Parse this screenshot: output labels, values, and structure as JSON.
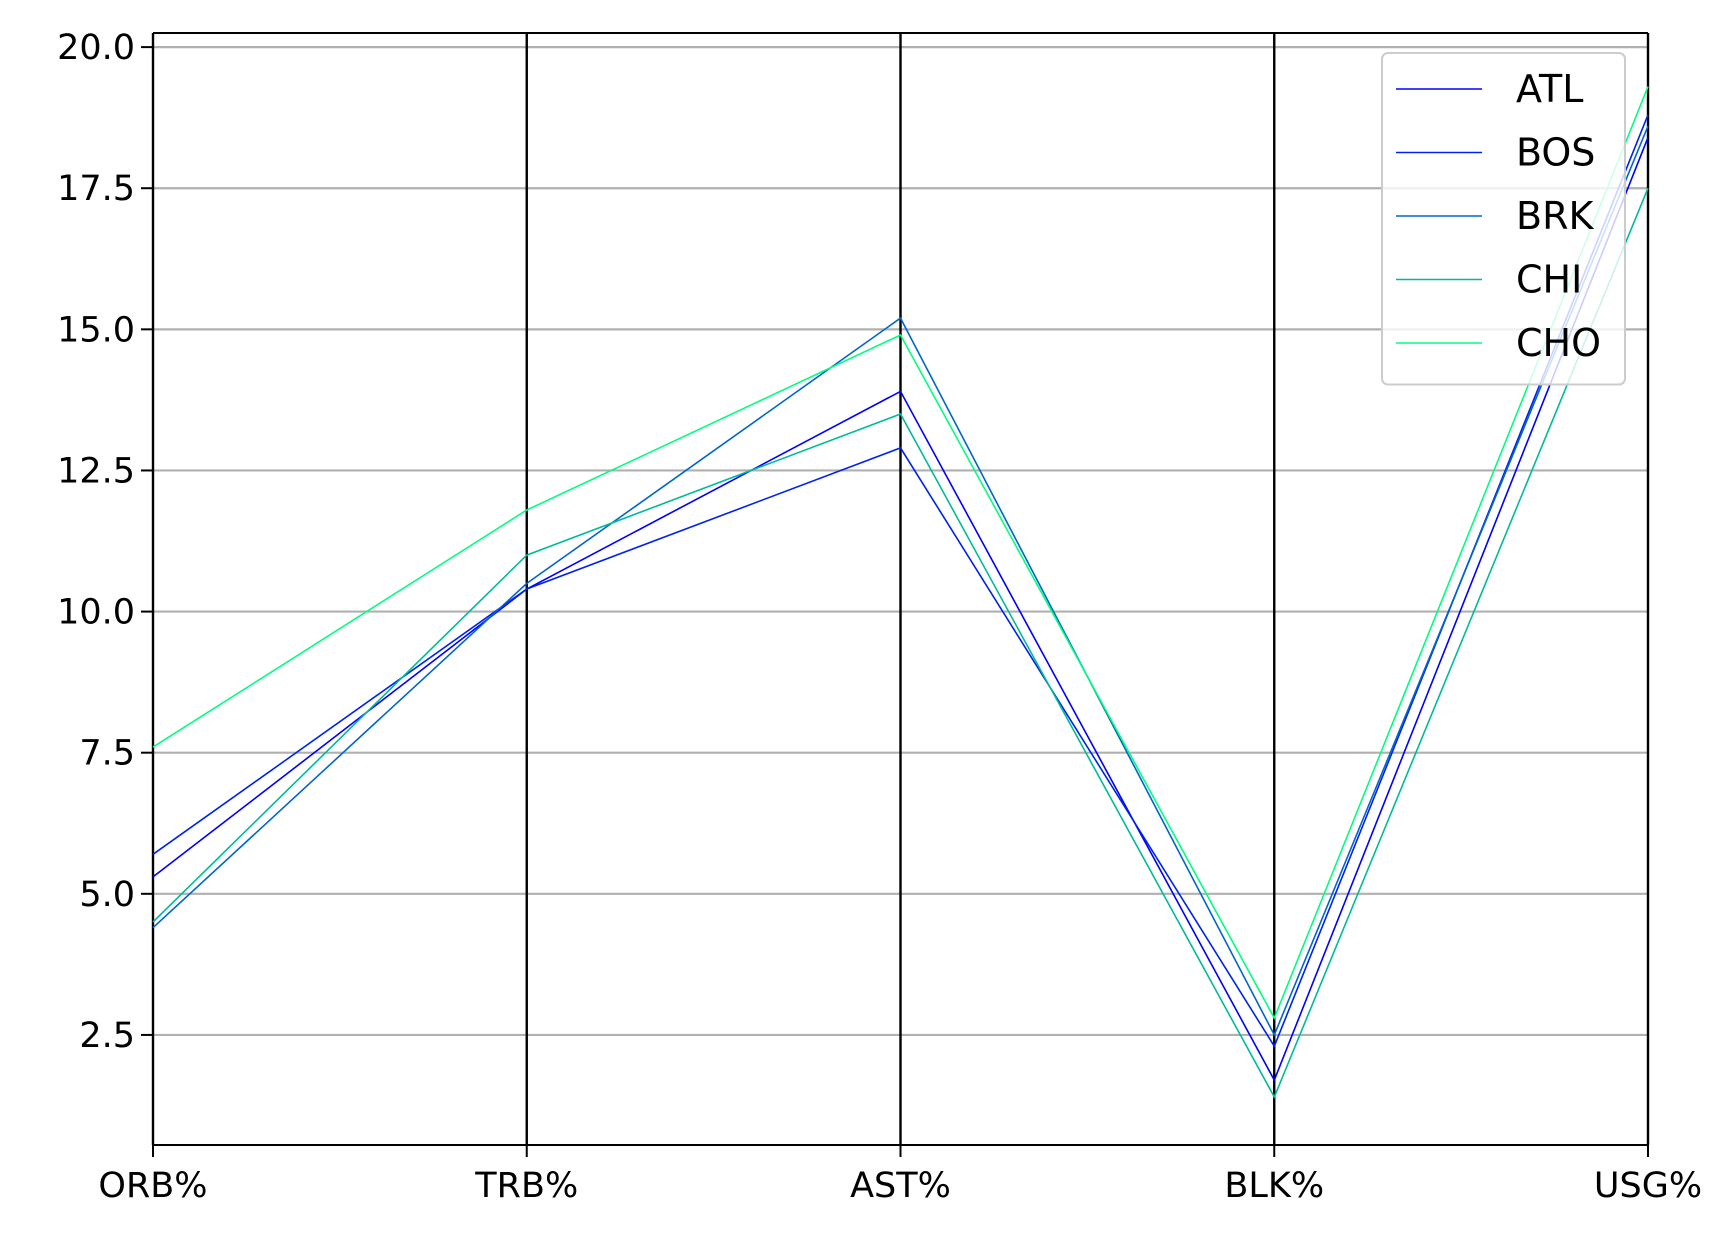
{
  "chart_data": {
    "type": "line",
    "categories": [
      "ORB%",
      "TRB%",
      "AST%",
      "BLK%",
      "USG%"
    ],
    "series": [
      {
        "name": "ATL",
        "color": "#0000ff",
        "values": [
          5.3,
          10.4,
          13.9,
          1.7,
          18.4
        ]
      },
      {
        "name": "BOS",
        "color": "#0022ef",
        "values": [
          5.7,
          10.4,
          12.9,
          2.3,
          18.8
        ]
      },
      {
        "name": "BRK",
        "color": "#0066cc",
        "values": [
          4.4,
          10.5,
          15.2,
          2.5,
          18.6
        ]
      },
      {
        "name": "CHI",
        "color": "#00bb99",
        "values": [
          4.5,
          11.0,
          13.5,
          1.4,
          17.5
        ]
      },
      {
        "name": "CHO",
        "color": "#00ff80",
        "values": [
          7.6,
          11.8,
          14.9,
          2.8,
          19.3
        ]
      }
    ],
    "ylim": [
      0.55,
      20.25
    ],
    "yticks": [
      "2.5",
      "5.0",
      "7.5",
      "10.0",
      "12.5",
      "15.0",
      "17.5",
      "20.0"
    ],
    "title": "",
    "xlabel": "",
    "ylabel": "",
    "grid": true,
    "legend": "top-right"
  }
}
